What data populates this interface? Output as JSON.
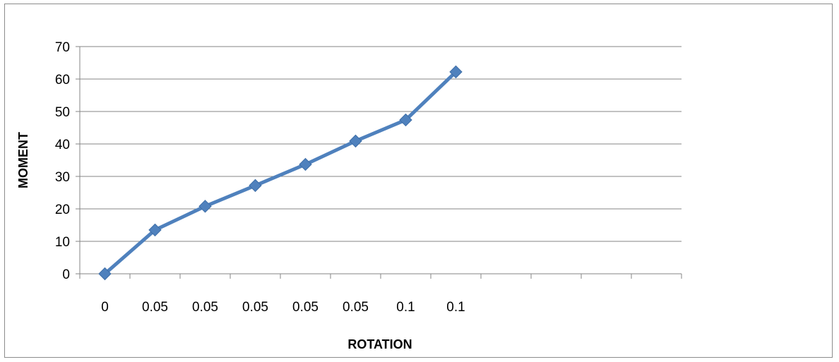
{
  "chart_data": {
    "type": "line",
    "title": "",
    "xlabel": "ROTATION",
    "ylabel": "MOMENT",
    "categories": [
      "0",
      "0.05",
      "0.05",
      "0.05",
      "0.05",
      "0.05",
      "0.1",
      "0.1"
    ],
    "total_category_slots": 12,
    "series": [
      {
        "values": [
          0,
          13.5,
          20.8,
          27.2,
          33.7,
          40.9,
          47.4,
          62.2
        ]
      }
    ],
    "y_ticks": [
      "0",
      "10",
      "20",
      "30",
      "40",
      "50",
      "60",
      "70"
    ],
    "ylim": [
      0,
      70
    ],
    "grid": "horizontal",
    "legend": "none",
    "colors": {
      "series": "#4f81bd",
      "grid": "#868686",
      "axis": "#868686",
      "frame": "#8c8c8c"
    }
  }
}
